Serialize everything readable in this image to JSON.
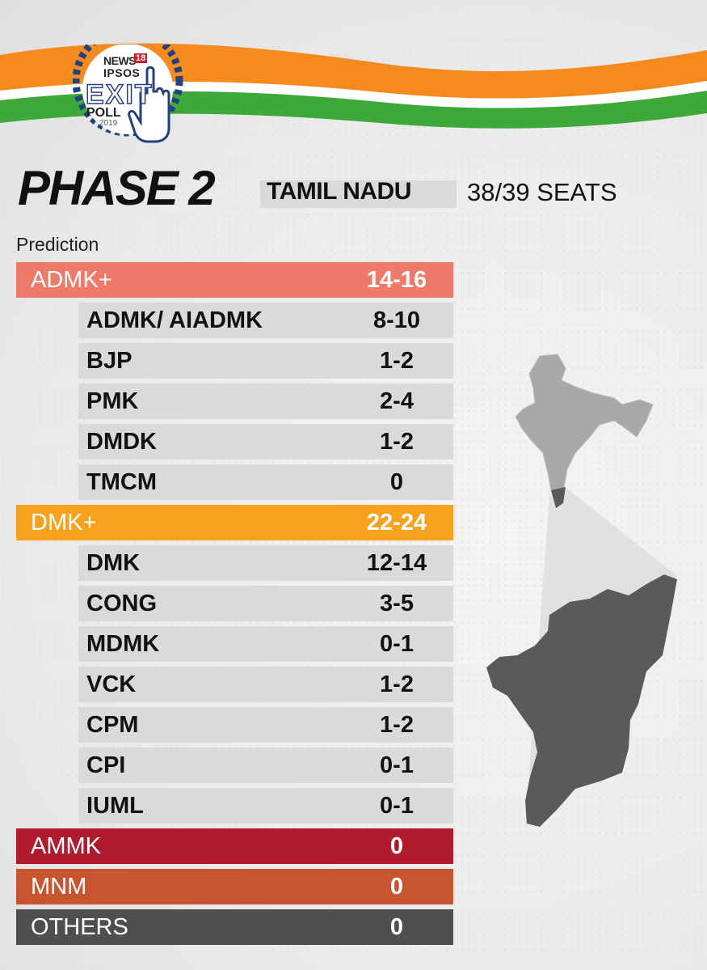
{
  "logo": {
    "news": "NEWS",
    "eighteen": "18",
    "ipsos": "IPSOS",
    "exit": "EXIT",
    "poll": "POLL",
    "year": "2019"
  },
  "header": {
    "phase": "PHASE 2",
    "state": "TAMIL NADU",
    "seats": "38/39 SEATS"
  },
  "prediction_label": "Prediction",
  "colors": {
    "admk_alliance": "#f07a6a",
    "dmk_alliance": "#f6a21c",
    "ammk": "#b01c2e",
    "mnm": "#c85430",
    "others": "#4f4f4f",
    "party_row": "#dadada",
    "flag_saffron": "#f58a1f",
    "flag_green": "#3fa83a",
    "map_gray": "#5a5a5a",
    "india_gray": "#a8a8a8"
  },
  "rows": [
    {
      "type": "alliance",
      "label": "ADMK+",
      "value": "14-16",
      "color_key": "admk_alliance"
    },
    {
      "type": "party",
      "label": "ADMK/ AIADMK",
      "value": "8-10"
    },
    {
      "type": "party",
      "label": "BJP",
      "value": "1-2"
    },
    {
      "type": "party",
      "label": "PMK",
      "value": "2-4"
    },
    {
      "type": "party",
      "label": "DMDK",
      "value": "1-2"
    },
    {
      "type": "party",
      "label": "TMCM",
      "value": "0"
    },
    {
      "type": "alliance",
      "label": "DMK+",
      "value": "22-24",
      "color_key": "dmk_alliance"
    },
    {
      "type": "party",
      "label": "DMK",
      "value": "12-14"
    },
    {
      "type": "party",
      "label": "CONG",
      "value": "3-5"
    },
    {
      "type": "party",
      "label": "MDMK",
      "value": "0-1"
    },
    {
      "type": "party",
      "label": "VCK",
      "value": "1-2"
    },
    {
      "type": "party",
      "label": "CPM",
      "value": "1-2"
    },
    {
      "type": "party",
      "label": "CPI",
      "value": "0-1"
    },
    {
      "type": "party",
      "label": "IUML",
      "value": "0-1"
    },
    {
      "type": "alliance",
      "label": "AMMK",
      "value": "0",
      "color_key": "ammk"
    },
    {
      "type": "alliance",
      "label": "MNM",
      "value": "0",
      "color_key": "mnm"
    },
    {
      "type": "alliance",
      "label": "OTHERS",
      "value": "0",
      "color_key": "others"
    }
  ]
}
